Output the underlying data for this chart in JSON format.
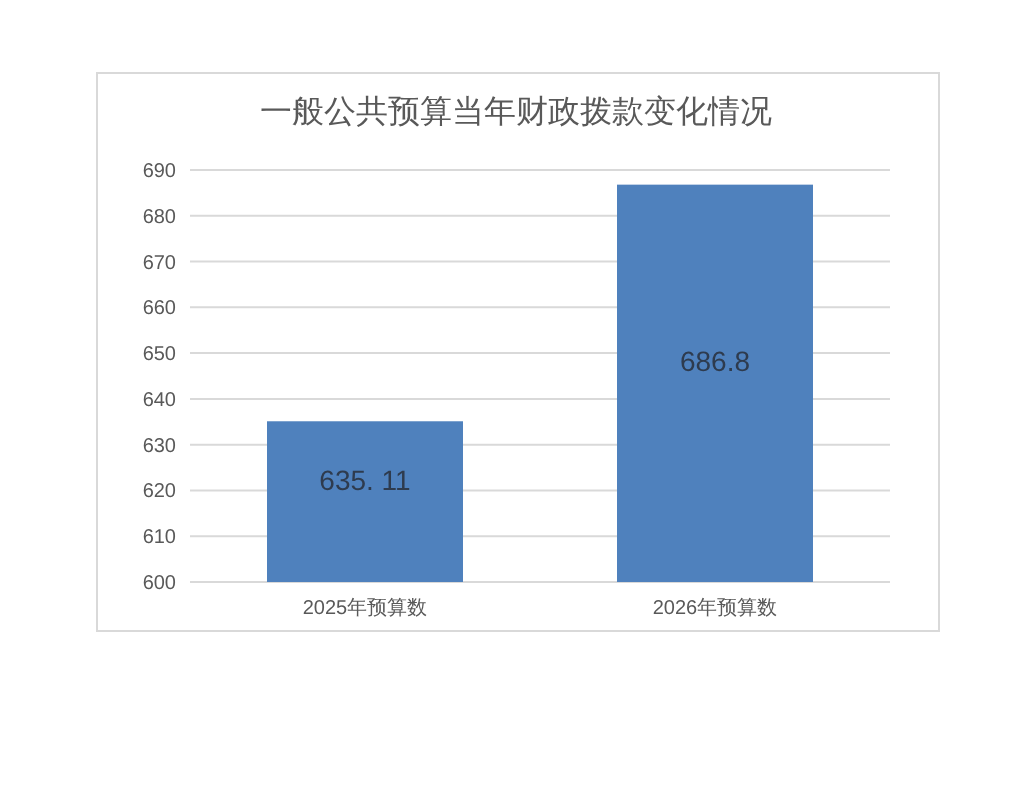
{
  "chart_data": {
    "type": "bar",
    "title": "一般公共预算当年财政拨款变化情况",
    "categories": [
      "2025年预算数",
      "2026年预算数"
    ],
    "values": [
      635.11,
      686.8
    ],
    "color": "#4f81bd",
    "value_labels": [
      "635. 11",
      "686.8"
    ],
    "ylim": [
      600,
      690
    ],
    "yticks": [
      600,
      610,
      620,
      630,
      640,
      650,
      660,
      670,
      680,
      690
    ],
    "grid": "y"
  }
}
